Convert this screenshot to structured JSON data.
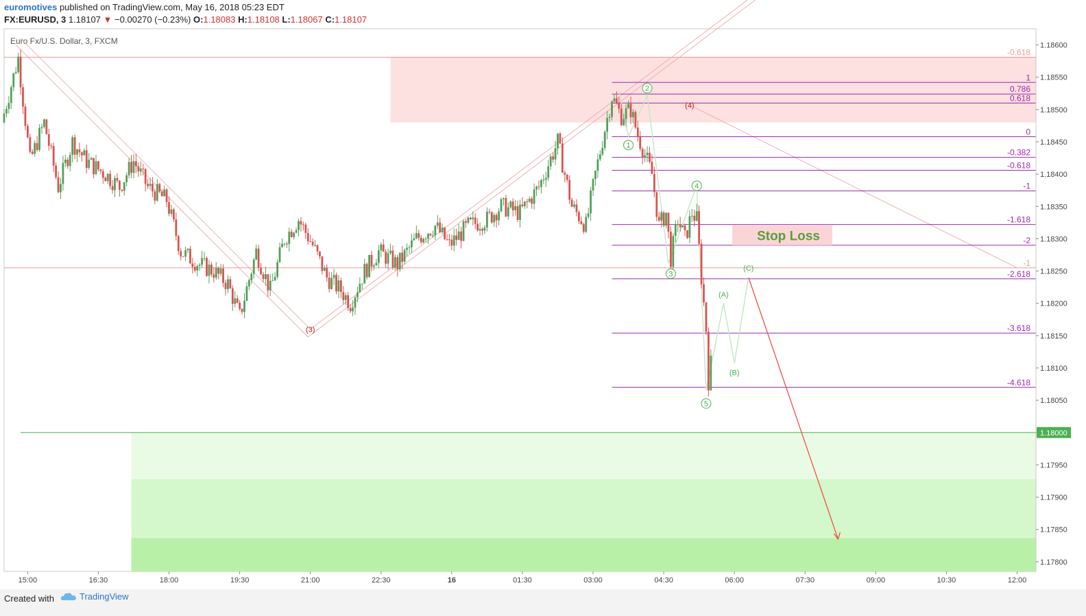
{
  "header": {
    "author": "euromotives",
    "published_text": "published on TradingView.com, May 16, 2018 05:23 EDT",
    "symbol": "FX:EURUSD, 3",
    "last": "1.18107",
    "change": "−0.00270 (−0.23%)",
    "o_label": "O:",
    "o_value": "1.18083",
    "h_label": "H:",
    "h_value": "1.18108",
    "l_label": "L:",
    "l_value": "1.18067",
    "c_label": "C:",
    "c_value": "1.18107"
  },
  "footer": {
    "created": "Created with",
    "brand": "TradingView"
  },
  "colors": {
    "up": "#53a05a",
    "down": "#d9534f",
    "fib": "#9c27b0",
    "wave_green": "#4caf50",
    "wave_red": "#b71c1c",
    "zone_red": "#fde0e0",
    "zone_green": "#d8f7d0",
    "target": "#f44336"
  },
  "chart_data": {
    "type": "candlestick",
    "title": "Euro Fx/U.S. Dollar, 3, FXCM",
    "ylim": [
      1.17785,
      1.18625
    ],
    "y_ticks": [
      "1.18600",
      "1.18550",
      "1.18500",
      "1.18450",
      "1.18400",
      "1.18350",
      "1.18300",
      "1.18250",
      "1.18200",
      "1.18150",
      "1.18100",
      "1.18050",
      "1.18000",
      "1.17950",
      "1.17900",
      "1.17850",
      "1.17800"
    ],
    "price_tag": "1.18000",
    "x_ticks": [
      "15:00",
      "16:30",
      "18:00",
      "19:30",
      "21:00",
      "22:30",
      "16",
      "01:30",
      "03:00",
      "04:30",
      "06:00",
      "07:30",
      "09:00",
      "10:30",
      "12:00"
    ],
    "x_start_hours": 14.5,
    "x_end_hours": 36.4,
    "candle_anchors": [
      [
        14.5,
        1.1848
      ],
      [
        14.85,
        1.1858
      ],
      [
        15.1,
        1.1842
      ],
      [
        15.4,
        1.1848
      ],
      [
        15.7,
        1.1838
      ],
      [
        16.0,
        1.1845
      ],
      [
        16.3,
        1.1842
      ],
      [
        16.7,
        1.184
      ],
      [
        17.0,
        1.1838
      ],
      [
        17.3,
        1.1842
      ],
      [
        17.6,
        1.1838
      ],
      [
        18.0,
        1.1836
      ],
      [
        18.3,
        1.1828
      ],
      [
        18.7,
        1.1826
      ],
      [
        19.0,
        1.1825
      ],
      [
        19.3,
        1.1823
      ],
      [
        19.55,
        1.1818
      ],
      [
        19.9,
        1.1828
      ],
      [
        20.2,
        1.1822
      ],
      [
        20.5,
        1.183
      ],
      [
        20.8,
        1.1833
      ],
      [
        21.1,
        1.1829
      ],
      [
        21.4,
        1.1824
      ],
      [
        21.7,
        1.1822
      ],
      [
        21.9,
        1.182
      ],
      [
        22.2,
        1.1825
      ],
      [
        22.5,
        1.1828
      ],
      [
        22.9,
        1.1826
      ],
      [
        23.3,
        1.183
      ],
      [
        23.7,
        1.1832
      ],
      [
        24.0,
        1.1829
      ],
      [
        24.4,
        1.1832
      ],
      [
        24.8,
        1.1833
      ],
      [
        25.1,
        1.1835
      ],
      [
        25.5,
        1.1834
      ],
      [
        25.9,
        1.1838
      ],
      [
        26.3,
        1.1845
      ],
      [
        26.6,
        1.1835
      ],
      [
        26.9,
        1.1832
      ],
      [
        27.1,
        1.184
      ],
      [
        27.3,
        1.1847
      ],
      [
        27.45,
        1.1852
      ],
      [
        27.65,
        1.1849
      ],
      [
        27.85,
        1.185
      ],
      [
        28.0,
        1.1846
      ],
      [
        28.15,
        1.1843
      ],
      [
        28.3,
        1.184
      ],
      [
        28.45,
        1.1832
      ],
      [
        28.6,
        1.1834
      ],
      [
        28.7,
        1.1827
      ],
      [
        28.85,
        1.1833
      ],
      [
        29.0,
        1.183
      ],
      [
        29.15,
        1.1834
      ],
      [
        29.25,
        1.1833
      ],
      [
        29.35,
        1.1824
      ],
      [
        29.45,
        1.1816
      ],
      [
        29.5,
        1.1808
      ],
      [
        29.55,
        1.18107
      ]
    ],
    "fib_levels": [
      {
        "label": "1",
        "price": 1.18542
      },
      {
        "label": "0.786",
        "price": 1.18524
      },
      {
        "label": "0.618",
        "price": 1.1851
      },
      {
        "label": "0",
        "price": 1.18458
      },
      {
        "label": "-0.382",
        "price": 1.18426
      },
      {
        "label": "-0.618",
        "price": 1.18406
      },
      {
        "label": "-1",
        "price": 1.18374
      },
      {
        "label": "-1.618",
        "price": 1.18322
      },
      {
        "label": "-2",
        "price": 1.1829
      },
      {
        "label": "-2.618",
        "price": 1.18238
      },
      {
        "label": "-3.618",
        "price": 1.18154
      },
      {
        "label": "-4.618",
        "price": 1.1807
      }
    ],
    "fib_extra": [
      {
        "label": "-0.618",
        "price": 1.18581
      },
      {
        "label": "-1",
        "price": 1.18255
      }
    ],
    "resistance_zone": [
      1.1848,
      1.18581
    ],
    "support_line": 1.18,
    "stop_loss_label": "Stop Loss",
    "wave_labels": [
      {
        "label": "(3)",
        "t": 21.0,
        "p": 1.1816,
        "color": "red"
      },
      {
        "label": "(4)",
        "t": 29.05,
        "p": 1.18507,
        "color": "red"
      },
      {
        "label": "1",
        "t": 27.75,
        "p": 1.18445,
        "color": "green",
        "circle": true
      },
      {
        "label": "2",
        "t": 28.15,
        "p": 1.18533,
        "color": "green",
        "circle": true
      },
      {
        "label": "3",
        "t": 28.65,
        "p": 1.18246,
        "color": "green",
        "circle": true
      },
      {
        "label": "4",
        "t": 29.2,
        "p": 1.18382,
        "color": "green",
        "circle": true
      },
      {
        "label": "5",
        "t": 29.4,
        "p": 1.18045,
        "color": "green",
        "circle": true
      },
      {
        "label": "(A)",
        "t": 29.77,
        "p": 1.18214,
        "color": "green"
      },
      {
        "label": "(B)",
        "t": 30.0,
        "p": 1.18093,
        "color": "green"
      },
      {
        "label": "(C)",
        "t": 30.3,
        "p": 1.18255,
        "color": "green"
      }
    ],
    "target_arrow": {
      "from": [
        30.3,
        1.1824
      ],
      "to": [
        32.2,
        1.17835
      ]
    }
  }
}
